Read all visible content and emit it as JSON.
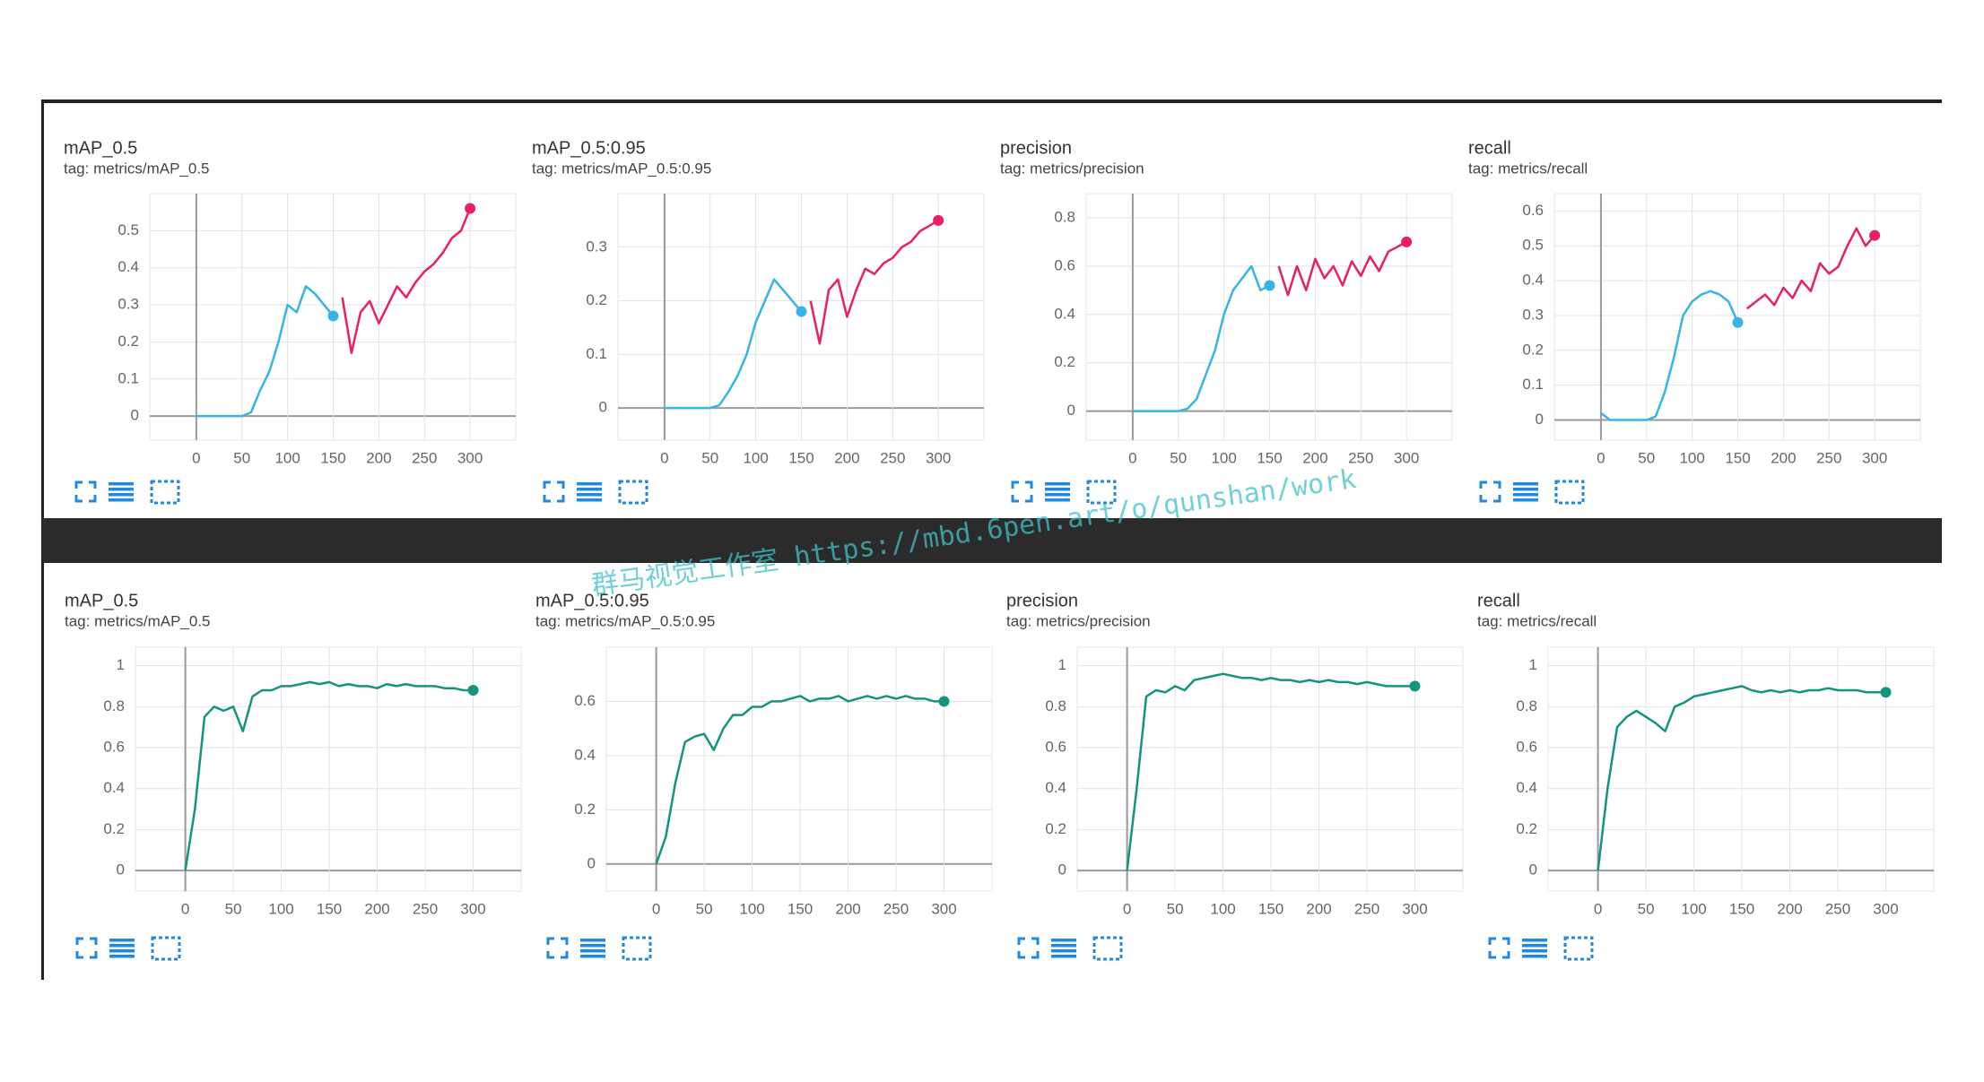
{
  "watermark": "群马视觉工作室 https://mbd.6pen.art/o/qunshan/work",
  "chart_data": [
    {
      "type": "line",
      "title": "mAP_0.5",
      "subtitle": "tag: metrics/mAP_0.5",
      "x": [
        0,
        10,
        20,
        30,
        40,
        50,
        60,
        70,
        80,
        90,
        100,
        110,
        120,
        130,
        140,
        150,
        160,
        170,
        180,
        190,
        200,
        210,
        220,
        230,
        240,
        250,
        260,
        270,
        280,
        290,
        300
      ],
      "xlim": [
        -51,
        350
      ],
      "xticks": [
        0,
        50,
        100,
        150,
        200,
        250,
        300
      ],
      "ylim": [
        -0.065,
        0.6
      ],
      "yticks": [
        0,
        0.1,
        0.2,
        0.3,
        0.4,
        0.5
      ],
      "grid": true,
      "series": [
        {
          "color": "#33b5e5",
          "values": [
            0,
            0,
            0,
            0,
            0,
            0,
            0.01,
            0.07,
            0.12,
            0.2,
            0.3,
            0.28,
            0.35,
            0.33,
            0.3,
            0.27,
            null,
            null,
            null,
            null,
            null,
            null,
            null,
            null,
            null,
            null,
            null,
            null,
            null,
            null,
            null
          ]
        },
        {
          "color": "#e91e63",
          "values": [
            null,
            null,
            null,
            null,
            null,
            null,
            null,
            null,
            null,
            null,
            null,
            null,
            null,
            null,
            null,
            null,
            0.32,
            0.17,
            0.28,
            0.31,
            0.25,
            0.3,
            0.35,
            0.32,
            0.36,
            0.39,
            0.41,
            0.44,
            0.48,
            0.5,
            0.56
          ]
        }
      ]
    },
    {
      "type": "line",
      "title": "mAP_0.5:0.95",
      "subtitle": "tag: metrics/mAP_0.5:0.95",
      "x": [
        0,
        10,
        20,
        30,
        40,
        50,
        60,
        70,
        80,
        90,
        100,
        110,
        120,
        130,
        140,
        150,
        160,
        170,
        180,
        190,
        200,
        210,
        220,
        230,
        240,
        250,
        260,
        270,
        280,
        290,
        300
      ],
      "xlim": [
        -51,
        350
      ],
      "xticks": [
        0,
        50,
        100,
        150,
        200,
        250,
        300
      ],
      "ylim": [
        -0.06,
        0.4
      ],
      "yticks": [
        0,
        0.1,
        0.2,
        0.3
      ],
      "grid": true,
      "series": [
        {
          "color": "#33b5e5",
          "values": [
            0,
            0,
            0,
            0,
            0,
            0,
            0.005,
            0.03,
            0.06,
            0.1,
            0.16,
            0.2,
            0.24,
            0.22,
            0.2,
            0.18,
            null,
            null,
            null,
            null,
            null,
            null,
            null,
            null,
            null,
            null,
            null,
            null,
            null,
            null,
            null
          ]
        },
        {
          "color": "#e91e63",
          "values": [
            null,
            null,
            null,
            null,
            null,
            null,
            null,
            null,
            null,
            null,
            null,
            null,
            null,
            null,
            null,
            null,
            0.2,
            0.12,
            0.22,
            0.24,
            0.17,
            0.22,
            0.26,
            0.25,
            0.27,
            0.28,
            0.3,
            0.31,
            0.33,
            0.34,
            0.35
          ]
        }
      ]
    },
    {
      "type": "line",
      "title": "precision",
      "subtitle": "tag: metrics/precision",
      "x": [
        0,
        10,
        20,
        30,
        40,
        50,
        60,
        70,
        80,
        90,
        100,
        110,
        120,
        130,
        140,
        150,
        160,
        170,
        180,
        190,
        200,
        210,
        220,
        230,
        240,
        250,
        260,
        270,
        280,
        290,
        300
      ],
      "xlim": [
        -51,
        350
      ],
      "xticks": [
        0,
        50,
        100,
        150,
        200,
        250,
        300
      ],
      "ylim": [
        -0.12,
        0.9
      ],
      "yticks": [
        0,
        0.2,
        0.4,
        0.6,
        0.8
      ],
      "grid": true,
      "series": [
        {
          "color": "#33b5e5",
          "values": [
            0,
            0,
            0,
            0,
            0,
            0,
            0.01,
            0.05,
            0.15,
            0.25,
            0.4,
            0.5,
            0.55,
            0.6,
            0.5,
            0.52,
            null,
            null,
            null,
            null,
            null,
            null,
            null,
            null,
            null,
            null,
            null,
            null,
            null,
            null,
            null
          ]
        },
        {
          "color": "#e91e63",
          "values": [
            null,
            null,
            null,
            null,
            null,
            null,
            null,
            null,
            null,
            null,
            null,
            null,
            null,
            null,
            null,
            null,
            0.6,
            0.48,
            0.6,
            0.5,
            0.63,
            0.55,
            0.6,
            0.52,
            0.62,
            0.56,
            0.64,
            0.58,
            0.66,
            0.68,
            0.7
          ]
        }
      ]
    },
    {
      "type": "line",
      "title": "recall",
      "subtitle": "tag: metrics/recall",
      "x": [
        0,
        10,
        20,
        30,
        40,
        50,
        60,
        70,
        80,
        90,
        100,
        110,
        120,
        130,
        140,
        150,
        160,
        170,
        180,
        190,
        200,
        210,
        220,
        230,
        240,
        250,
        260,
        270,
        280,
        290,
        300
      ],
      "xlim": [
        -51,
        350
      ],
      "xticks": [
        0,
        50,
        100,
        150,
        200,
        250,
        300
      ],
      "ylim": [
        -0.058,
        0.65
      ],
      "yticks": [
        0,
        0.1,
        0.2,
        0.3,
        0.4,
        0.5,
        0.6
      ],
      "grid": true,
      "series": [
        {
          "color": "#33b5e5",
          "values": [
            0.02,
            0,
            0,
            0,
            0,
            0,
            0.01,
            0.08,
            0.18,
            0.3,
            0.34,
            0.36,
            0.37,
            0.36,
            0.34,
            0.28,
            null,
            null,
            null,
            null,
            null,
            null,
            null,
            null,
            null,
            null,
            null,
            null,
            null,
            null,
            null
          ]
        },
        {
          "color": "#e91e63",
          "values": [
            null,
            null,
            null,
            null,
            null,
            null,
            null,
            null,
            null,
            null,
            null,
            null,
            null,
            null,
            null,
            null,
            0.32,
            0.34,
            0.36,
            0.33,
            0.38,
            0.35,
            0.4,
            0.37,
            0.45,
            0.42,
            0.44,
            0.5,
            0.55,
            0.5,
            0.53
          ]
        }
      ]
    },
    {
      "type": "line",
      "title": "mAP_0.5",
      "subtitle": "tag: metrics/mAP_0.5",
      "x": [
        0,
        10,
        20,
        30,
        40,
        50,
        60,
        70,
        80,
        90,
        100,
        110,
        120,
        130,
        140,
        150,
        160,
        170,
        180,
        190,
        200,
        210,
        220,
        230,
        240,
        250,
        260,
        270,
        280,
        290,
        300
      ],
      "xlim": [
        -52,
        350
      ],
      "xticks": [
        0,
        50,
        100,
        150,
        200,
        250,
        300
      ],
      "ylim": [
        -0.1,
        1.09
      ],
      "yticks": [
        0,
        0.2,
        0.4,
        0.6,
        0.8,
        1
      ],
      "grid": true,
      "series": [
        {
          "color": "#12947f",
          "values": [
            0,
            0.3,
            0.75,
            0.8,
            0.78,
            0.8,
            0.68,
            0.85,
            0.88,
            0.88,
            0.9,
            0.9,
            0.91,
            0.92,
            0.91,
            0.92,
            0.9,
            0.91,
            0.9,
            0.9,
            0.89,
            0.91,
            0.9,
            0.91,
            0.9,
            0.9,
            0.9,
            0.89,
            0.89,
            0.88,
            0.88
          ]
        }
      ]
    },
    {
      "type": "line",
      "title": "mAP_0.5:0.95",
      "subtitle": "tag: metrics/mAP_0.5:0.95",
      "x": [
        0,
        10,
        20,
        30,
        40,
        50,
        60,
        70,
        80,
        90,
        100,
        110,
        120,
        130,
        140,
        150,
        160,
        170,
        180,
        190,
        200,
        210,
        220,
        230,
        240,
        250,
        260,
        270,
        280,
        290,
        300
      ],
      "xlim": [
        -52,
        350
      ],
      "xticks": [
        0,
        50,
        100,
        150,
        200,
        250,
        300
      ],
      "ylim": [
        -0.1,
        0.8
      ],
      "yticks": [
        0,
        0.2,
        0.4,
        0.6
      ],
      "grid": true,
      "series": [
        {
          "color": "#12947f",
          "values": [
            0,
            0.1,
            0.3,
            0.45,
            0.47,
            0.48,
            0.42,
            0.5,
            0.55,
            0.55,
            0.58,
            0.58,
            0.6,
            0.6,
            0.61,
            0.62,
            0.6,
            0.61,
            0.61,
            0.62,
            0.6,
            0.61,
            0.62,
            0.61,
            0.62,
            0.61,
            0.62,
            0.61,
            0.61,
            0.6,
            0.6
          ]
        }
      ]
    },
    {
      "type": "line",
      "title": "precision",
      "subtitle": "tag: metrics/precision",
      "x": [
        0,
        10,
        20,
        30,
        40,
        50,
        60,
        70,
        80,
        90,
        100,
        110,
        120,
        130,
        140,
        150,
        160,
        170,
        180,
        190,
        200,
        210,
        220,
        230,
        240,
        250,
        260,
        270,
        280,
        290,
        300
      ],
      "xlim": [
        -52,
        350
      ],
      "xticks": [
        0,
        50,
        100,
        150,
        200,
        250,
        300
      ],
      "ylim": [
        -0.1,
        1.09
      ],
      "yticks": [
        0,
        0.2,
        0.4,
        0.6,
        0.8,
        1
      ],
      "grid": true,
      "series": [
        {
          "color": "#12947f",
          "values": [
            0,
            0.4,
            0.85,
            0.88,
            0.87,
            0.9,
            0.88,
            0.93,
            0.94,
            0.95,
            0.96,
            0.95,
            0.94,
            0.94,
            0.93,
            0.94,
            0.93,
            0.93,
            0.92,
            0.93,
            0.92,
            0.93,
            0.92,
            0.92,
            0.91,
            0.92,
            0.91,
            0.9,
            0.9,
            0.9,
            0.9
          ]
        }
      ]
    },
    {
      "type": "line",
      "title": "recall",
      "subtitle": "tag: metrics/recall",
      "x": [
        0,
        10,
        20,
        30,
        40,
        50,
        60,
        70,
        80,
        90,
        100,
        110,
        120,
        130,
        140,
        150,
        160,
        170,
        180,
        190,
        200,
        210,
        220,
        230,
        240,
        250,
        260,
        270,
        280,
        290,
        300
      ],
      "xlim": [
        -52,
        350
      ],
      "xticks": [
        0,
        50,
        100,
        150,
        200,
        250,
        300
      ],
      "ylim": [
        -0.1,
        1.09
      ],
      "yticks": [
        0,
        0.2,
        0.4,
        0.6,
        0.8,
        1
      ],
      "grid": true,
      "series": [
        {
          "color": "#12947f",
          "values": [
            0,
            0.4,
            0.7,
            0.75,
            0.78,
            0.75,
            0.72,
            0.68,
            0.8,
            0.82,
            0.85,
            0.86,
            0.87,
            0.88,
            0.89,
            0.9,
            0.88,
            0.87,
            0.88,
            0.87,
            0.88,
            0.87,
            0.88,
            0.88,
            0.89,
            0.88,
            0.88,
            0.88,
            0.87,
            0.87,
            0.87
          ]
        }
      ]
    }
  ]
}
